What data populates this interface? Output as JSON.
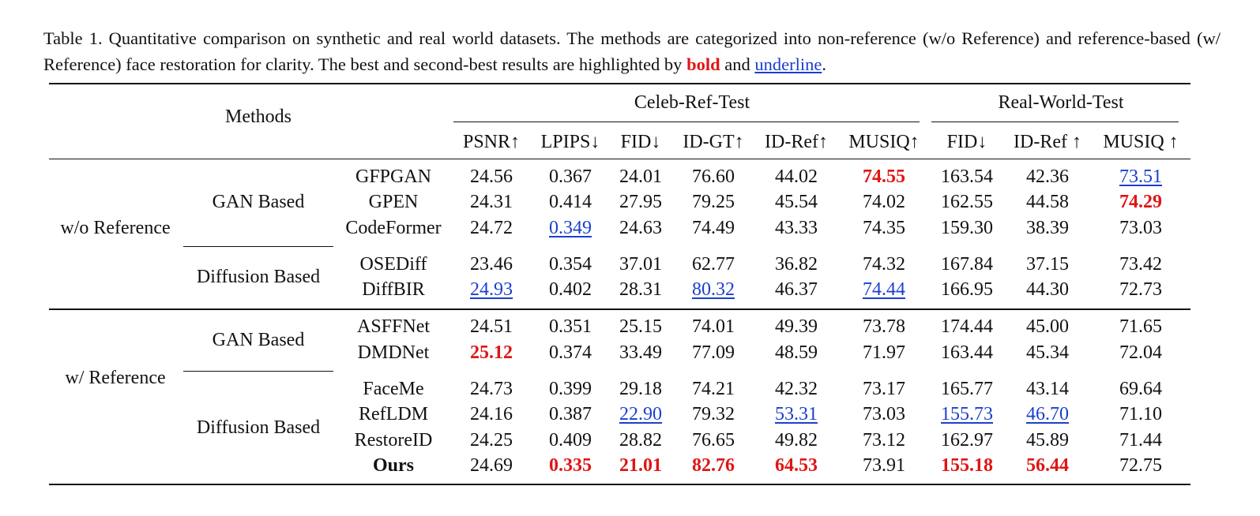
{
  "caption": {
    "prefix": "Table 1. Quantitative comparison on synthetic and real world datasets. The methods are categorized into non-reference (w/o Reference) and reference-based (w/ Reference) face restoration for clarity. The best and second-best results are highlighted by ",
    "bold_word": "bold",
    "middle": " and ",
    "underline_word": "underline",
    "suffix": "."
  },
  "header": {
    "methods": "Methods",
    "group_celeb": "Celeb-Ref-Test",
    "group_real": "Real-World-Test",
    "columns": [
      "PSNR↑",
      "LPIPS↓",
      "FID↓",
      "ID-GT↑",
      "ID-Ref↑",
      "MUSIQ↑",
      "FID↓",
      "ID-Ref ↑",
      "MUSIQ ↑"
    ]
  },
  "groups": [
    {
      "label": "w/o Reference",
      "subgroups": [
        {
          "label": "GAN Based"
        },
        {
          "label": "Diffusion Based"
        }
      ]
    },
    {
      "label": "w/ Reference",
      "subgroups": [
        {
          "label": "GAN Based"
        },
        {
          "label": "Diffusion Based"
        }
      ]
    }
  ],
  "rows": [
    {
      "method": "GFPGAN",
      "values": [
        "24.56",
        "0.367",
        "24.01",
        "76.60",
        "44.02",
        "74.55",
        "163.54",
        "42.36",
        "73.51"
      ],
      "styles": [
        "",
        "",
        "",
        "",
        "",
        "best",
        "",
        "",
        "second"
      ]
    },
    {
      "method": "GPEN",
      "values": [
        "24.31",
        "0.414",
        "27.95",
        "79.25",
        "45.54",
        "74.02",
        "162.55",
        "44.58",
        "74.29"
      ],
      "styles": [
        "",
        "",
        "",
        "",
        "",
        "",
        "",
        "",
        "best"
      ]
    },
    {
      "method": "CodeFormer",
      "values": [
        "24.72",
        "0.349",
        "24.63",
        "74.49",
        "43.33",
        "74.35",
        "159.30",
        "38.39",
        "73.03"
      ],
      "styles": [
        "",
        "second",
        "",
        "",
        "",
        "",
        "",
        "",
        ""
      ]
    },
    {
      "method": "OSEDiff",
      "values": [
        "23.46",
        "0.354",
        "37.01",
        "62.77",
        "36.82",
        "74.32",
        "167.84",
        "37.15",
        "73.42"
      ],
      "styles": [
        "",
        "",
        "",
        "",
        "",
        "",
        "",
        "",
        ""
      ]
    },
    {
      "method": "DiffBIR",
      "values": [
        "24.93",
        "0.402",
        "28.31",
        "80.32",
        "46.37",
        "74.44",
        "166.95",
        "44.30",
        "72.73"
      ],
      "styles": [
        "second",
        "",
        "",
        "second",
        "",
        "second",
        "",
        "",
        ""
      ]
    },
    {
      "method": "ASFFNet",
      "values": [
        "24.51",
        "0.351",
        "25.15",
        "74.01",
        "49.39",
        "73.78",
        "174.44",
        "45.00",
        "71.65"
      ],
      "styles": [
        "",
        "",
        "",
        "",
        "",
        "",
        "",
        "",
        ""
      ]
    },
    {
      "method": "DMDNet",
      "values": [
        "25.12",
        "0.374",
        "33.49",
        "77.09",
        "48.59",
        "71.97",
        "163.44",
        "45.34",
        "72.04"
      ],
      "styles": [
        "best",
        "",
        "",
        "",
        "",
        "",
        "",
        "",
        ""
      ]
    },
    {
      "method": "FaceMe",
      "values": [
        "24.73",
        "0.399",
        "29.18",
        "74.21",
        "42.32",
        "73.17",
        "165.77",
        "43.14",
        "69.64"
      ],
      "styles": [
        "",
        "",
        "",
        "",
        "",
        "",
        "",
        "",
        ""
      ]
    },
    {
      "method": "RefLDM",
      "values": [
        "24.16",
        "0.387",
        "22.90",
        "79.32",
        "53.31",
        "73.03",
        "155.73",
        "46.70",
        "71.10"
      ],
      "styles": [
        "",
        "",
        "second",
        "",
        "second",
        "",
        "second",
        "second",
        ""
      ]
    },
    {
      "method": "RestoreID",
      "values": [
        "24.25",
        "0.409",
        "28.82",
        "76.65",
        "49.82",
        "73.12",
        "162.97",
        "45.89",
        "71.44"
      ],
      "styles": [
        "",
        "",
        "",
        "",
        "",
        "",
        "",
        "",
        ""
      ]
    },
    {
      "method": "Ours",
      "values": [
        "24.69",
        "0.335",
        "21.01",
        "82.76",
        "64.53",
        "73.91",
        "155.18",
        "56.44",
        "72.75"
      ],
      "styles": [
        "",
        "best",
        "best",
        "best",
        "best",
        "",
        "best",
        "best",
        ""
      ]
    }
  ]
}
